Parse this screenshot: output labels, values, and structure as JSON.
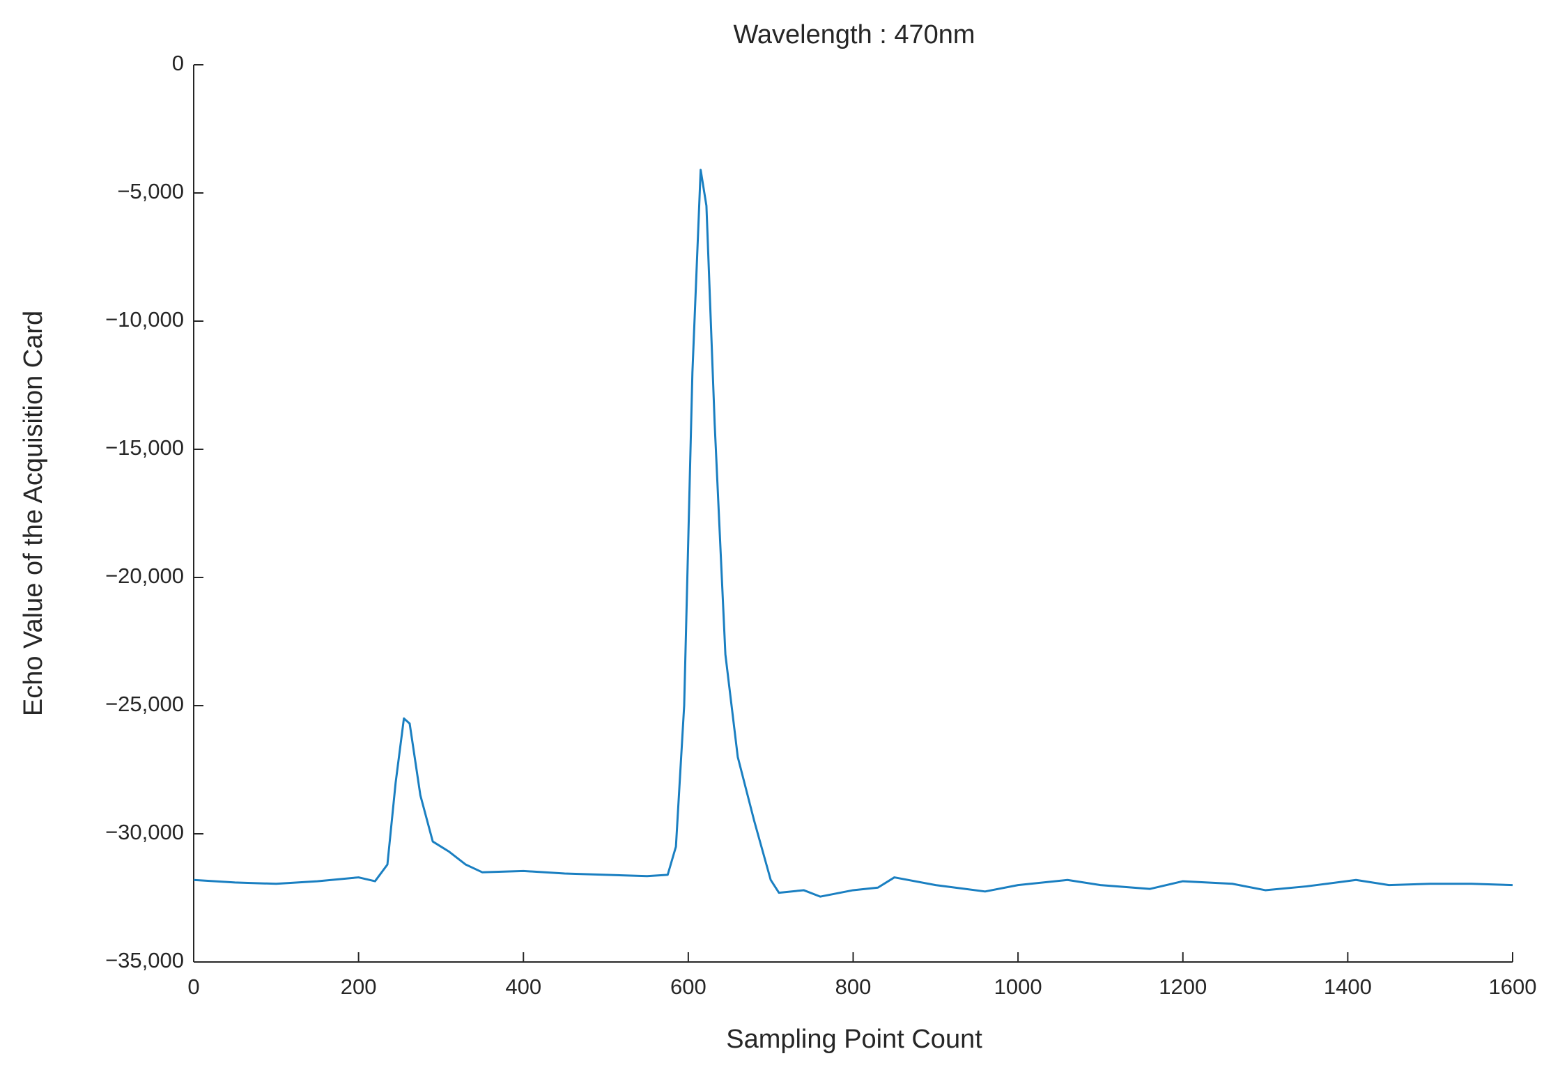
{
  "chart_data": {
    "type": "line",
    "title": "Wavelength : 470nm",
    "x_label": "Sampling Point Count",
    "y_label": "Echo Value of the Acquisition Card",
    "xlim": [
      0,
      1600
    ],
    "xticks": [
      0,
      200,
      400,
      600,
      800,
      1000,
      1200,
      1400,
      1600
    ],
    "ylim": [
      -35000,
      0
    ],
    "yticks": [
      {
        "value": -35000,
        "label": "−35,000"
      },
      {
        "value": -30000,
        "label": "−30,000"
      },
      {
        "value": -25000,
        "label": "−25,000"
      },
      {
        "value": -20000,
        "label": "−20,000"
      },
      {
        "value": -15000,
        "label": "−15,000"
      },
      {
        "value": -10000,
        "label": "−10,000"
      },
      {
        "value": -5000,
        "label": "−5,000"
      },
      0
    ],
    "series": [
      {
        "color": "#1a7fc1",
        "x": [
          0,
          50,
          100,
          150,
          200,
          220,
          235,
          245,
          255,
          262,
          275,
          290,
          310,
          330,
          350,
          400,
          450,
          500,
          550,
          575,
          585,
          595,
          605,
          615,
          622,
          632,
          645,
          660,
          680,
          700,
          710,
          740,
          760,
          800,
          830,
          850,
          900,
          960,
          1000,
          1060,
          1100,
          1160,
          1200,
          1260,
          1300,
          1350,
          1410,
          1450,
          1500,
          1550,
          1600
        ],
        "values": [
          -31800,
          -31900,
          -31950,
          -31850,
          -31700,
          -31850,
          -31200,
          -28000,
          -25500,
          -25700,
          -28500,
          -30300,
          -30700,
          -31200,
          -31500,
          -31450,
          -31550,
          -31600,
          -31650,
          -31600,
          -30500,
          -25000,
          -12000,
          -4100,
          -5500,
          -14000,
          -23000,
          -27000,
          -29500,
          -31800,
          -32300,
          -32200,
          -32450,
          -32200,
          -32100,
          -31700,
          -32000,
          -32250,
          -32000,
          -31800,
          -32000,
          -32150,
          -31850,
          -31950,
          -32200,
          -32050,
          -31800,
          -32000,
          -31950,
          -31950,
          -32000
        ]
      }
    ]
  }
}
